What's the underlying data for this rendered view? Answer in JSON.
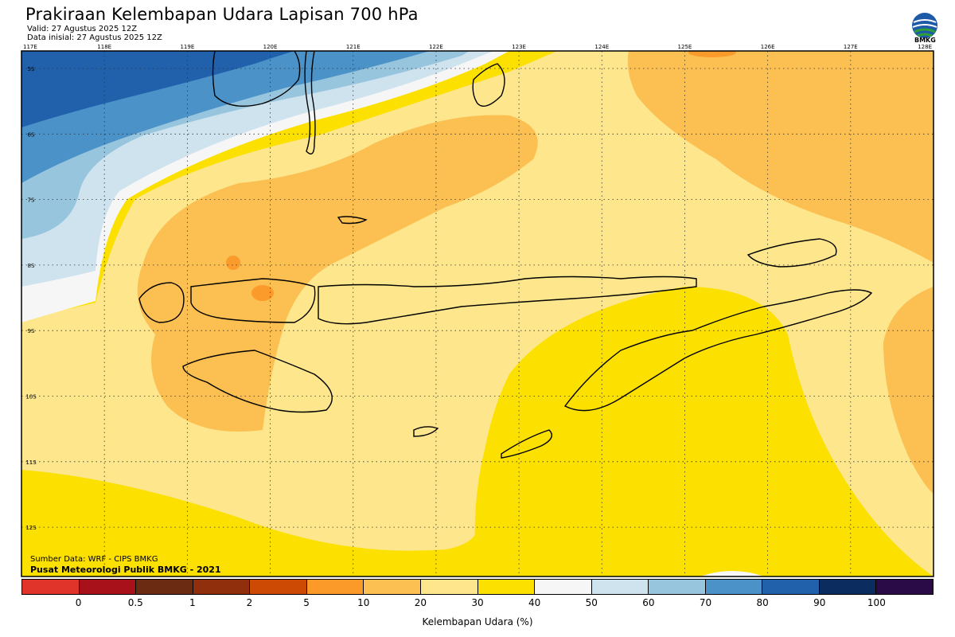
{
  "header": {
    "title": "Prakiraan Kelembapan Udara Lapisan 700 hPa",
    "valid": "Valid: 27 Agustus 2025 12Z",
    "initial": "Data inisial: 27 Agustus 2025 12Z",
    "logo_text": "BMKG"
  },
  "map": {
    "lon_labels": [
      "117E",
      "118E",
      "119E",
      "120E",
      "121E",
      "122E",
      "123E",
      "124E",
      "125E",
      "126E",
      "127E",
      "128E"
    ],
    "lat_labels": [
      "5S",
      "6S",
      "7S",
      "8S",
      "9S",
      "10S",
      "11S",
      "12S"
    ],
    "colors": {
      "band_20_30": "#fde68c",
      "band_30_40": "#fce000",
      "band_10_20": "#fcbf52",
      "band_5_10": "#fb9b2c",
      "band_40_50": "#f6f6f6",
      "band_50_60": "#cfe3ef",
      "band_60_70": "#98c5de",
      "band_70_80": "#4b92c8",
      "band_80_90": "#2161ab"
    }
  },
  "footer": {
    "source": "Sumber Data: WRF - CIPS BMKG",
    "credit": "Pusat Meteorologi Publik BMKG - 2021"
  },
  "colorbar": {
    "colors": [
      "#e0332a",
      "#a8101a",
      "#6b2a12",
      "#8f2f0c",
      "#cc4a04",
      "#fb9a28",
      "#fcbf52",
      "#fde68c",
      "#fce000",
      "#f6f6f6",
      "#cfe3ef",
      "#98c5de",
      "#4b92c8",
      "#2161ab",
      "#0b2c5e",
      "#2a0b48"
    ],
    "labels": [
      "0",
      "0.5",
      "1",
      "2",
      "5",
      "10",
      "20",
      "30",
      "40",
      "50",
      "60",
      "70",
      "80",
      "90",
      "100"
    ],
    "title": "Kelembapan Udara (%)"
  }
}
